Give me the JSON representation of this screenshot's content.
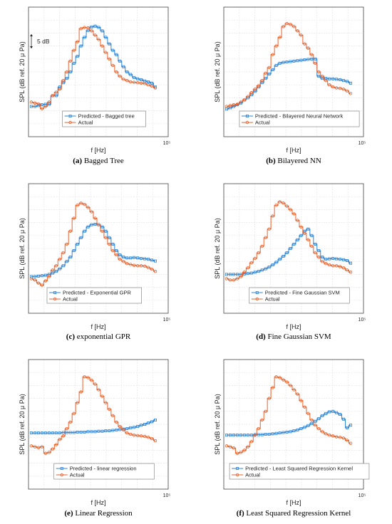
{
  "figure": {
    "annotation": "5 dB",
    "chart_data": [
      {
        "type": "line",
        "caption_letter": "(a)",
        "caption_text": "Bagged Tree",
        "xlabel": "f [Hz]",
        "ylabel": "SPL (dB ref. 20 μ Pa)",
        "x_tick_label": "10⁵",
        "grid": true,
        "legend_position": "bottom-center",
        "series": [
          {
            "name": "Predicted - Bagged tree",
            "color": "#2e86d6",
            "marker": "square",
            "values": [
              -1,
              -1,
              -0.8,
              -0.6,
              -0.5,
              -0.5,
              1.5,
              1.5,
              3.5,
              4.5,
              5.5,
              7,
              9,
              10.6,
              13,
              15,
              16.6,
              17.4,
              17.6,
              17.3,
              16.5,
              15,
              13.5,
              12,
              11,
              9.5,
              8.2,
              7,
              6.4,
              5.7,
              5.4,
              5.2,
              4.9,
              4.7,
              4.4,
              3.5
            ]
          },
          {
            "name": "Actual",
            "color": "#e8622c",
            "marker": "circle",
            "values": [
              0,
              -0.2,
              -0.4,
              -1.5,
              -1,
              0,
              1.5,
              2.3,
              3,
              5,
              7,
              9.5,
              12,
              14,
              17,
              17.3,
              17.2,
              16.5,
              15.5,
              14.5,
              13,
              11.5,
              10,
              8.5,
              7,
              6,
              5.3,
              5,
              4.7,
              4.6,
              4.5,
              4.4,
              4.3,
              4,
              3.7,
              3.3
            ]
          }
        ]
      },
      {
        "type": "line",
        "caption_letter": "(b)",
        "caption_text": "Bilayered NN",
        "xlabel": "f [Hz]",
        "ylabel": "SPL (dB ref. 20 μ Pa)",
        "x_tick_label": "10⁵",
        "grid": true,
        "legend_position": "bottom-center",
        "series": [
          {
            "name": "Predicted - Bilayered Neural Network",
            "color": "#2e86d6",
            "marker": "square",
            "values": [
              -1.6,
              -1.3,
              -1,
              -0.6,
              -0.2,
              0.5,
              1,
              1.7,
              2.5,
              3.5,
              4.5,
              5.5,
              6.5,
              7.5,
              8.5,
              9,
              9.2,
              9.3,
              9.4,
              9.5,
              9.6,
              9.7,
              9.8,
              9.9,
              10,
              10,
              6,
              5.5,
              5.5,
              5.4,
              5.4,
              5.3,
              5.2,
              5,
              4.8,
              4.4
            ]
          },
          {
            "name": "Actual",
            "color": "#e8622c",
            "marker": "circle",
            "values": [
              -1,
              -0.8,
              -0.6,
              -0.5,
              0,
              0.5,
              1.3,
              2.2,
              3,
              3.8,
              5,
              6.7,
              8,
              11,
              13,
              15,
              17.5,
              18.2,
              18,
              17.5,
              16.5,
              15.5,
              13.5,
              12.5,
              11,
              9,
              7,
              6,
              5,
              4,
              3.5,
              3.3,
              3.2,
              3,
              2.6,
              2
            ]
          }
        ]
      },
      {
        "type": "line",
        "caption_letter": "(c)",
        "caption_text": "exponential GPR",
        "xlabel": "f [Hz]",
        "ylabel": "SPL (dB ref. 20 μ Pa)",
        "x_tick_label": "10⁵",
        "grid": true,
        "legend_position": "bottom-left",
        "series": [
          {
            "name": "Predicted - Exponential GPR",
            "color": "#2e86d6",
            "marker": "square",
            "values": [
              0.5,
              0.5,
              0.6,
              0.7,
              0.8,
              1,
              1.3,
              1.7,
              2.3,
              3,
              4,
              5,
              6.5,
              8,
              9.5,
              11,
              12,
              12.5,
              12.6,
              12.5,
              12,
              11,
              9.5,
              8,
              6.5,
              5.5,
              5,
              4.8,
              4.8,
              4.9,
              4.8,
              4.7,
              4.6,
              4.5,
              4.3,
              4.1
            ]
          },
          {
            "name": "Actual",
            "color": "#e8622c",
            "marker": "circle",
            "values": [
              0,
              -0.3,
              -1,
              -1.5,
              -0.5,
              0.5,
              2,
              3,
              4.5,
              6,
              8,
              11,
              14,
              17,
              17.5,
              17.2,
              16.5,
              15.5,
              14,
              12.5,
              11,
              9.5,
              8,
              6.5,
              5.5,
              4.5,
              4,
              3.5,
              3.3,
              3.1,
              3,
              3,
              2.9,
              2.6,
              2.2,
              1.7
            ]
          }
        ]
      },
      {
        "type": "line",
        "caption_letter": "(d)",
        "caption_text": "Fine Gaussian SVM",
        "xlabel": "f [Hz]",
        "ylabel": "SPL (dB ref. 20 μ Pa)",
        "x_tick_label": "10⁵",
        "grid": true,
        "legend_position": "bottom-center",
        "series": [
          {
            "name": "Predicted - Fine Gaussian SVM",
            "color": "#2e86d6",
            "marker": "square",
            "values": [
              1,
              1,
              1,
              1,
              1,
              1.1,
              1.2,
              1.3,
              1.5,
              1.7,
              2,
              2.3,
              2.7,
              3.2,
              3.8,
              4.5,
              5.2,
              6,
              7,
              8,
              9,
              10,
              11,
              11.5,
              10,
              8,
              6.5,
              5,
              4.5,
              4.6,
              4.7,
              4.6,
              4.5,
              4.4,
              4.2,
              3.6
            ]
          },
          {
            "name": "Actual",
            "color": "#e8622c",
            "marker": "circle",
            "values": [
              0,
              -0.3,
              -0.3,
              0,
              0.5,
              1.5,
              2.5,
              3.7,
              4.7,
              6,
              7.5,
              9.5,
              11.5,
              14.5,
              17,
              17.8,
              17.5,
              16.8,
              16,
              15,
              13.5,
              12,
              10.5,
              9,
              7.5,
              6,
              5,
              4,
              3.5,
              3.2,
              3,
              3,
              2.8,
              2.5,
              2,
              1.5
            ]
          }
        ]
      },
      {
        "type": "line",
        "caption_letter": "(e)",
        "caption_text": "Linear Regression",
        "xlabel": "f [Hz]",
        "ylabel": "SPL (dB ref. 20 μ Pa)",
        "x_tick_label": "10⁵",
        "grid": true,
        "legend_position": "bottom-center",
        "series": [
          {
            "name": "Predicted - linear regression",
            "color": "#2e86d6",
            "marker": "square",
            "values": [
              5,
              5,
              5,
              5,
              5,
              5,
              5,
              5,
              5,
              5.1,
              5.1,
              5.1,
              5.1,
              5.2,
              5.2,
              5.2,
              5.3,
              5.3,
              5.3,
              5.4,
              5.4,
              5.5,
              5.5,
              5.6,
              5.7,
              5.8,
              5.9,
              6,
              6.2,
              6.3,
              6.5,
              6.8,
              7,
              7.3,
              7.6,
              8
            ]
          },
          {
            "name": "Actual",
            "color": "#e8622c",
            "marker": "circle",
            "values": [
              2,
              1.8,
              1.6,
              1.8,
              0.3,
              0.5,
              1.3,
              2.3,
              3.5,
              4.3,
              6,
              7.5,
              9.5,
              12,
              14.5,
              18,
              17.8,
              17.2,
              16.3,
              15,
              13.5,
              12,
              10.5,
              9,
              7.5,
              6.5,
              5.7,
              5,
              4.7,
              4.5,
              4.4,
              4.3,
              4.2,
              4,
              3.7,
              3.2
            ]
          }
        ]
      },
      {
        "type": "line",
        "caption_letter": "(f)",
        "caption_text": "Least Squared Regression Kernel",
        "xlabel": "f [Hz]",
        "ylabel": "SPL (dB ref. 20 μ Pa)",
        "x_tick_label": "10⁵",
        "grid": true,
        "legend_position": "bottom-center",
        "series": [
          {
            "name": "Predicted - Least Squared Regression Kernel",
            "color": "#2e86d6",
            "marker": "square",
            "values": [
              4.5,
              4.5,
              4.5,
              4.5,
              4.5,
              4.5,
              4.5,
              4.5,
              4.6,
              4.6,
              4.6,
              4.7,
              4.7,
              4.8,
              4.9,
              5,
              5.1,
              5.2,
              5.3,
              5.5,
              5.7,
              6,
              6.3,
              6.7,
              7.2,
              7.7,
              8.3,
              9,
              9.5,
              9.9,
              10,
              9.7,
              9.3,
              8.2,
              6.2,
              6.8
            ]
          },
          {
            "name": "Actual",
            "color": "#e8622c",
            "marker": "circle",
            "values": [
              2,
              1.8,
              1.5,
              0.3,
              0.5,
              1,
              1.8,
              3,
              4.5,
              6,
              8,
              10,
              13,
              15.5,
              18,
              17.8,
              17.3,
              16.8,
              16,
              15,
              14,
              12.5,
              11,
              9.5,
              8,
              6.8,
              6,
              5.3,
              4.8,
              4.5,
              4.3,
              4.1,
              4,
              3.8,
              3.3,
              2.6
            ]
          }
        ]
      }
    ]
  }
}
